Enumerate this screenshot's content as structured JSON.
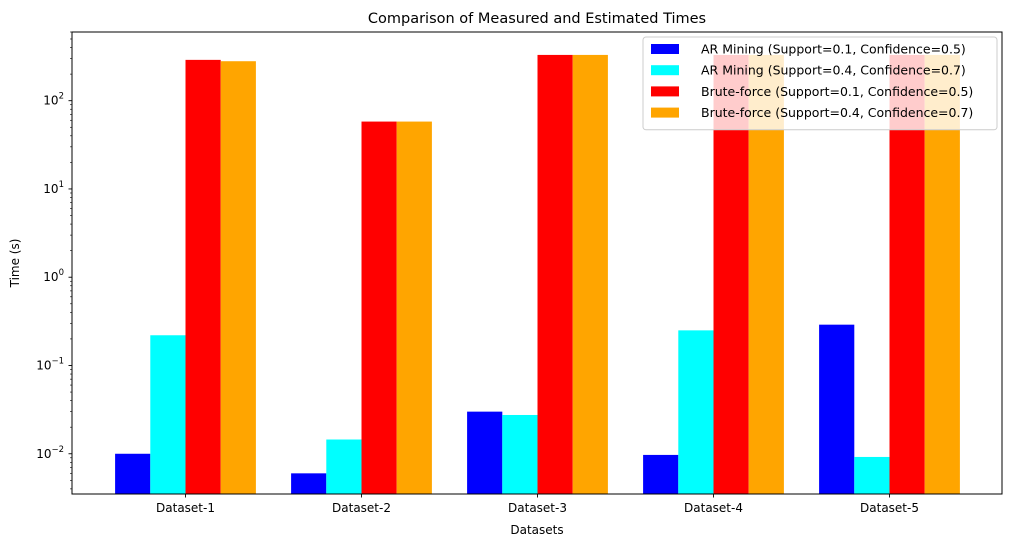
{
  "chart_data": {
    "type": "bar",
    "title": "Comparison of Measured and Estimated Times",
    "xlabel": "Datasets",
    "ylabel": "Time (s)",
    "yscale": "log",
    "ylim": [
      0.0035,
      600
    ],
    "yticks": [
      {
        "value": 0.01,
        "base": "10",
        "exp": "−2"
      },
      {
        "value": 0.1,
        "base": "10",
        "exp": "−1"
      },
      {
        "value": 1,
        "base": "10",
        "exp": "0"
      },
      {
        "value": 10,
        "base": "10",
        "exp": "1"
      },
      {
        "value": 100,
        "base": "10",
        "exp": "2"
      }
    ],
    "categories": [
      "Dataset-1",
      "Dataset-2",
      "Dataset-3",
      "Dataset-4",
      "Dataset-5"
    ],
    "series": [
      {
        "name": "AR Mining (Support=0.1, Confidence=0.5)",
        "color": "#0000ff",
        "values": [
          0.01,
          0.006,
          0.03,
          0.0097,
          0.29
        ]
      },
      {
        "name": "AR Mining (Support=0.4, Confidence=0.7)",
        "color": "#00ffff",
        "values": [
          0.22,
          0.0145,
          0.0275,
          0.25,
          0.0092
        ]
      },
      {
        "name": "Brute-force (Support=0.1, Confidence=0.5)",
        "color": "#ff0000",
        "values": [
          290,
          58,
          330,
          330,
          330
        ]
      },
      {
        "name": "Brute-force (Support=0.4, Confidence=0.7)",
        "color": "#ffa500",
        "values": [
          280,
          58,
          330,
          330,
          330
        ]
      }
    ],
    "legend_position": "top-right",
    "grid": false
  }
}
